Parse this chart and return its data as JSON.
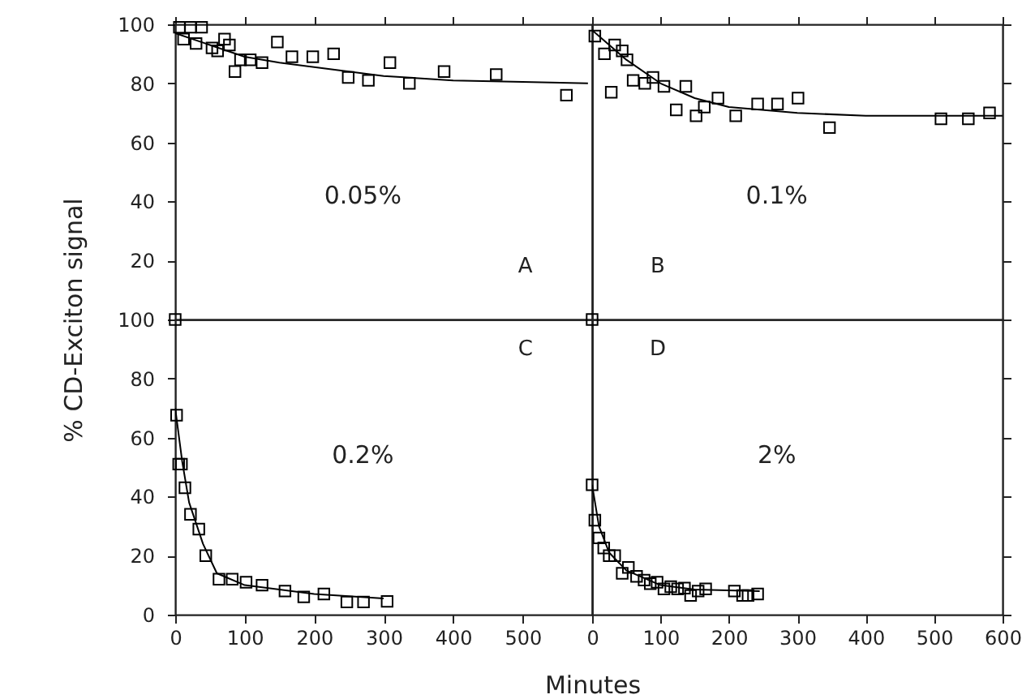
{
  "chart_data": [
    {
      "type": "scatter",
      "tick_labels": "y",
      "xlim": [
        0,
        600
      ],
      "ylim": [
        0,
        100
      ],
      "xticks": [
        0,
        100,
        200,
        300,
        400,
        500,
        {
          "value": 600,
          "label": null
        }
      ],
      "yticks": [
        {
          "value": 0,
          "label": null
        },
        20,
        40,
        60,
        80,
        100
      ],
      "annotations": [
        "0.05%",
        "A"
      ],
      "series": [
        {
          "type": "scatter",
          "marker": "square",
          "color": "#000000",
          "x": [
            6,
            22,
            38,
            12,
            30,
            53,
            61,
            71,
            78,
            86,
            94,
            108,
            125,
            147,
            168,
            198,
            228,
            249,
            278,
            309,
            337,
            387,
            462,
            563
          ],
          "values": [
            99,
            99,
            99,
            95,
            93.5,
            92,
            91,
            95,
            93,
            84,
            88,
            88,
            87,
            94,
            89,
            89,
            90,
            82,
            81,
            87,
            80,
            84,
            83,
            76
          ]
        },
        {
          "type": "line",
          "marker": "none",
          "color": "#000000",
          "x": [
            0,
            50,
            100,
            150,
            200,
            250,
            300,
            400,
            500,
            594
          ],
          "values": [
            97,
            93,
            89,
            87,
            85.5,
            84,
            82.5,
            81,
            80.5,
            80
          ]
        }
      ]
    },
    {
      "type": "scatter",
      "tick_labels": false,
      "xlim": [
        0,
        600
      ],
      "ylim": [
        0,
        100
      ],
      "xticks": [
        0,
        100,
        200,
        300,
        400,
        500,
        600
      ],
      "yticks": [
        0,
        20,
        40,
        60,
        80,
        100
      ],
      "annotations": [
        "0.1%",
        "B"
      ],
      "series": [
        {
          "type": "scatter",
          "marker": "square",
          "color": "#000000",
          "x": [
            4,
            18,
            33,
            44,
            51,
            28,
            60,
            77,
            89,
            105,
            137,
            123,
            152,
            164,
            184,
            210,
            242,
            271,
            301,
            347,
            510,
            550,
            581
          ],
          "values": [
            96,
            90,
            93,
            91,
            88,
            77,
            81,
            80,
            82,
            79,
            79,
            71,
            69,
            72,
            75,
            69,
            73,
            73,
            75,
            65,
            68,
            68,
            70
          ]
        },
        {
          "type": "line",
          "marker": "none",
          "color": "#000000",
          "x": [
            0,
            50,
            100,
            150,
            200,
            300,
            400,
            600
          ],
          "values": [
            98,
            88,
            80,
            75,
            72,
            70,
            69,
            69
          ]
        }
      ]
    },
    {
      "type": "scatter",
      "ylabel": "% CD-Exciton signal",
      "xlabel": "Minutes",
      "xlim": [
        0,
        600
      ],
      "ylim": [
        0,
        100
      ],
      "xticks": [
        0,
        100,
        200,
        300,
        400,
        500,
        {
          "value": 600,
          "label": null
        }
      ],
      "yticks": [
        0,
        20,
        40,
        60,
        80,
        100
      ],
      "annotations": [
        "0.2%",
        "C"
      ],
      "series": [
        {
          "type": "scatter",
          "marker": "square",
          "color": "#000000",
          "x": [
            0,
            2,
            5,
            9,
            14,
            22,
            34,
            44,
            63,
            82,
            102,
            125,
            158,
            185,
            214,
            247,
            271,
            305
          ],
          "values": [
            100,
            67.6,
            51,
            51,
            43,
            34,
            29,
            20,
            12,
            12,
            11,
            10,
            8,
            6,
            7,
            4.3,
            4.3,
            4.5
          ]
        },
        {
          "type": "line",
          "marker": "none",
          "color": "#000000",
          "x": [
            0,
            10,
            20,
            40,
            60,
            100,
            200,
            300
          ],
          "values": [
            70,
            52,
            38,
            24,
            14,
            10,
            7,
            5.5
          ]
        }
      ]
    },
    {
      "type": "scatter",
      "tick_labels": "x",
      "xlim": [
        0,
        600
      ],
      "ylim": [
        0,
        100
      ],
      "xticks": [
        0,
        100,
        200,
        300,
        400,
        500,
        600
      ],
      "yticks": [
        0,
        20,
        40,
        60,
        80,
        100
      ],
      "annotations": [
        "2%",
        "D"
      ],
      "series": [
        {
          "type": "scatter",
          "marker": "square",
          "color": "#000000",
          "x": [
            0,
            0,
            4,
            10,
            17,
            25,
            33,
            44,
            53,
            65,
            76,
            85,
            95,
            105,
            115,
            125,
            135,
            144,
            155,
            166,
            208,
            220,
            228,
            242
          ],
          "values": [
            100,
            44,
            32,
            26,
            22.6,
            20,
            20,
            14,
            16,
            13,
            11.7,
            10.5,
            11,
            8.7,
            9.5,
            8.7,
            9,
            6.5,
            8,
            8.7,
            8,
            6.5,
            6.5,
            7
          ]
        },
        {
          "type": "line",
          "marker": "none",
          "color": "#000000",
          "x": [
            0,
            10,
            25,
            50,
            100,
            150,
            245
          ],
          "values": [
            44,
            30,
            21,
            15,
            10,
            8.5,
            8
          ]
        }
      ]
    }
  ]
}
